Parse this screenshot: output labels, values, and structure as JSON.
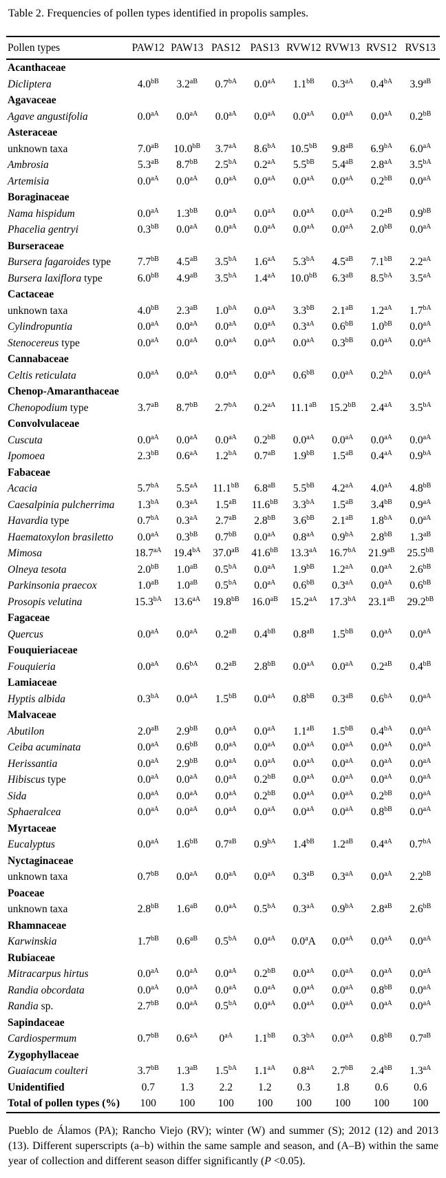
{
  "title": "Table 2. Frequencies of pollen types identified in propolis samples.",
  "table": {
    "columns": [
      "Pollen types",
      "PAW12",
      "PAW13",
      "PAS12",
      "PAS13",
      "RVW12",
      "RVW13",
      "RVS12",
      "RVS13"
    ],
    "rows": [
      {
        "type": "family",
        "label": "Acanthaceae"
      },
      {
        "type": "taxon",
        "label": "*Dicliptera*",
        "values": [
          "4.0^bB",
          "3.2^aB",
          "0.7^bA",
          "0.0^aA",
          "1.1^bB",
          "0.3^aA",
          "0.4^bA",
          "3.9^aB"
        ]
      },
      {
        "type": "family",
        "label": "Agavaceae"
      },
      {
        "type": "taxon",
        "label": "*Agave angustifolia*",
        "values": [
          "0.0^aA",
          "0.0^aA",
          "0.0^aA",
          "0.0^aA",
          "0.0^aA",
          "0.0^aA",
          "0.0^aA",
          "0.2^bB"
        ]
      },
      {
        "type": "family",
        "label": "Asteraceae"
      },
      {
        "type": "taxon",
        "label": "unknown taxa",
        "values": [
          "7.0^aB",
          "10.0^bB",
          "3.7^aA",
          "8.6^bA",
          "10.5^bB",
          "9.8^aB",
          "6.9^bA",
          "6.0^aA"
        ]
      },
      {
        "type": "taxon",
        "label": "*Ambrosia*",
        "values": [
          "5.3^aB",
          "8.7^bB",
          "2.5^bA",
          "0.2^aA",
          "5.5^bB",
          "5.4^aB",
          "2.8^aA",
          "3.5^bA"
        ]
      },
      {
        "type": "taxon",
        "label": "*Artemisia*",
        "values": [
          "0.0^aA",
          "0.0^aA",
          "0.0^aA",
          "0.0^aA",
          "0.0^aA",
          "0.0^aA",
          "0.2^bB",
          "0.0^aA"
        ]
      },
      {
        "type": "family",
        "label": "Boraginaceae"
      },
      {
        "type": "taxon",
        "label": "*Nama hispidum*",
        "values": [
          "0.0^aA",
          "1.3^bB",
          "0.0^aA",
          "0.0^aA",
          "0.0^aA",
          "0.0^aA",
          "0.2^aB",
          "0.9^bB"
        ]
      },
      {
        "type": "taxon",
        "label": "*Phacelia gentryi*",
        "values": [
          "0.3^bB",
          "0.0^aA",
          "0.0^aA",
          "0.0^aA",
          "0.0^aA",
          "0.0^aA",
          "2.0^bB",
          "0.0^aA"
        ]
      },
      {
        "type": "family",
        "label": "Burseraceae"
      },
      {
        "type": "taxon",
        "label": "*Bursera fagaroides* type",
        "values": [
          "7.7^bB",
          "4.5^aB",
          "3.5^bA",
          "1.6^aA",
          "5.3^bA",
          "4.5^aB",
          "7.1^bB",
          "2.2^aA"
        ]
      },
      {
        "type": "taxon",
        "label": "*Bursera laxiflora* type",
        "values": [
          "6.0^bB",
          "4.9^aB",
          "3.5^bA",
          "1.4^aA",
          "10.0^bB",
          "6.3^aB",
          "8.5^bA",
          "3.5^aA"
        ]
      },
      {
        "type": "family",
        "label": "Cactaceae"
      },
      {
        "type": "taxon",
        "label": "unknown taxa",
        "values": [
          "4.0^bB",
          "2.3^aB",
          "1.0^bA",
          "0.0^aA",
          "3.3^bB",
          "2.1^aB",
          "1.2^aA",
          "1.7^bA"
        ]
      },
      {
        "type": "taxon",
        "label": "*Cylindropuntia*",
        "values": [
          "0.0^aA",
          "0.0^aA",
          "0.0^aA",
          "0.0^aA",
          "0.3^aA",
          "0.6^bB",
          "1.0^bB",
          "0.0^aA"
        ]
      },
      {
        "type": "taxon",
        "label": "*Stenocereus* type",
        "values": [
          "0.0^aA",
          "0.0^aA",
          "0.0^aA",
          "0.0^aA",
          "0.0^aA",
          "0.3^bB",
          "0.0^aA",
          "0.0^aA"
        ]
      },
      {
        "type": "family",
        "label": "Cannabaceae"
      },
      {
        "type": "taxon",
        "label": "*Celtis reticulata*",
        "values": [
          "0.0^aA",
          "0.0^aA",
          "0.0^aA",
          "0.0^aA",
          "0.6^bB",
          "0.0^aA",
          "0.2^bA",
          "0.0^aA"
        ]
      },
      {
        "type": "family",
        "label": "Chenop-Amaranthaceae"
      },
      {
        "type": "taxon",
        "label": "*Chenopodium* type",
        "values": [
          "3.7^aB",
          "8.7^bB",
          "2.7^bA",
          "0.2^aA",
          "11.1^aB",
          "15.2^bB",
          "2.4^aA",
          "3.5^bA"
        ]
      },
      {
        "type": "family",
        "label": "Convolvulaceae"
      },
      {
        "type": "taxon",
        "label": "*Cuscuta*",
        "values": [
          "0.0^aA",
          "0.0^aA",
          "0.0^aA",
          "0.2^bB",
          "0.0^aA",
          "0.0^aA",
          "0.0^aA",
          "0.0^aA"
        ]
      },
      {
        "type": "taxon",
        "label": "*Ipomoea*",
        "values": [
          "2.3^bB",
          "0.6^aA",
          "1.2^bA",
          "0.7^aB",
          "1.9^bB",
          "1.5^aB",
          "0.4^aA",
          "0.9^bA"
        ]
      },
      {
        "type": "family",
        "label": "Fabaceae"
      },
      {
        "type": "taxon",
        "label": "*Acacia*",
        "values": [
          "5.7^bA",
          "5.5^aA",
          "11.1^bB",
          "6.8^aB",
          "5.5^bB",
          "4.2^aA",
          "4.0^aA",
          "4.8^bB"
        ]
      },
      {
        "type": "taxon",
        "label": "*Caesalpinia pulcherrima*",
        "values": [
          "1.3^bA",
          "0.3^aA",
          "1.5^aB",
          "11.6^bB",
          "3.3^bA",
          "1.5^aB",
          "3.4^bB",
          "0.9^aA"
        ]
      },
      {
        "type": "taxon",
        "label": "*Havardia* type",
        "values": [
          "0.7^bA",
          "0.3^aA",
          "2.7^aB",
          "2.8^bB",
          "3.6^bB",
          "2.1^aB",
          "1.8^bA",
          "0.0^aA"
        ]
      },
      {
        "type": "taxon",
        "label": "*Haematoxylon brasiletto*",
        "values": [
          "0.0^aA",
          "0.3^bB",
          "0.7^bB",
          "0.0^aA",
          "0.8^aA",
          "0.9^bA",
          "2.8^bB",
          "1.3^aB"
        ]
      },
      {
        "type": "taxon",
        "label": "*Mimosa*",
        "values": [
          "18.7^aA",
          "19.4^bA",
          "37.0^aB",
          "41.6^bB",
          "13.3^aA",
          "16.7^bA",
          "21.9^aB",
          "25.5^bB"
        ]
      },
      {
        "type": "taxon",
        "label": "*Olneya tesota*",
        "values": [
          "2.0^bB",
          "1.0^aB",
          "0.5^bA",
          "0.0^aA",
          "1.9^bB",
          "1.2^aA",
          "0.0^aA",
          "2.6^bB"
        ]
      },
      {
        "type": "taxon",
        "label": "*Parkinsonia praecox*",
        "values": [
          "1.0^aB",
          "1.0^aB",
          "0.5^bA",
          "0.0^aA",
          "0.6^bB",
          "0.3^aA",
          "0.0^aA",
          "0.6^bB"
        ]
      },
      {
        "type": "taxon",
        "label": "*Prosopis velutina*",
        "values": [
          "15.3^bA",
          "13.6^aA",
          "19.8^bB",
          "16.0^aB",
          "15.2^aA",
          "17.3^bA",
          "23.1^aB",
          "29.2^bB"
        ]
      },
      {
        "type": "family",
        "label": "Fagaceae"
      },
      {
        "type": "taxon",
        "label": "*Quercus*",
        "values": [
          "0.0^aA",
          "0.0^aA",
          "0.2^aB",
          "0.4^bB",
          "0.8^aB",
          "1.5^bB",
          "0.0^aA",
          "0.0^aA"
        ]
      },
      {
        "type": "family",
        "label": "Fouquieriaceae"
      },
      {
        "type": "taxon",
        "label": "*Fouquieria*",
        "values": [
          "0.0^aA",
          "0.6^bA",
          "0.2^aB",
          "2.8^bB",
          "0.0^aA",
          "0.0^aA",
          "0.2^aB",
          "0.4^bB"
        ]
      },
      {
        "type": "family",
        "label": "Lamiaceae"
      },
      {
        "type": "taxon",
        "label": "*Hyptis albida*",
        "values": [
          "0.3^bA",
          "0.0^aA",
          "1.5^bB",
          "0.0^aA",
          "0.8^bB",
          "0.3^aB",
          "0.6^bA",
          "0.0^aA"
        ]
      },
      {
        "type": "family",
        "label": "Malvaceae"
      },
      {
        "type": "taxon",
        "label": "*Abutilon*",
        "values": [
          "2.0^aB",
          "2.9^bB",
          "0.0^aA",
          "0.0^aA",
          "1.1^aB",
          "1.5^bB",
          "0.4^bA",
          "0.0^aA"
        ]
      },
      {
        "type": "taxon",
        "label": "*Ceiba acuminata*",
        "values": [
          "0.0^aA",
          "0.6^bB",
          "0.0^aA",
          "0.0^aA",
          "0.0^aA",
          "0.0^aA",
          "0.0^aA",
          "0.0^aA"
        ]
      },
      {
        "type": "taxon",
        "label": "*Herissantia*",
        "values": [
          "0.0^aA",
          "2.9^bB",
          "0.0^aA",
          "0.0^aA",
          "0.0^aA",
          "0.0^aA",
          "0.0^aA",
          "0.0^aA"
        ]
      },
      {
        "type": "taxon",
        "label": "*Hibiscus* type",
        "values": [
          "0.0^aA",
          "0.0^aA",
          "0.0^aA",
          "0.2^bB",
          "0.0^aA",
          "0.0^aA",
          "0.0^aA",
          "0.0^aA"
        ]
      },
      {
        "type": "taxon",
        "label": "*Sida*",
        "values": [
          "0.0^aA",
          "0.0^aA",
          "0.0^aA",
          "0.2^bB",
          "0.0^aA",
          "0.0^aA",
          "0.2^bB",
          "0.0^aA"
        ]
      },
      {
        "type": "taxon",
        "label": "*Sphaeralcea*",
        "values": [
          "0.0^aA",
          "0.0^aA",
          "0.0^aA",
          "0.0^aA",
          "0.0^aA",
          "0.0^aA",
          "0.8^bB",
          "0.0^aA"
        ]
      },
      {
        "type": "family",
        "label": "Myrtaceae"
      },
      {
        "type": "taxon",
        "label": "*Eucalyptus*",
        "values": [
          "0.0^aA",
          "1.6^bB",
          "0.7^aB",
          "0.9^bA",
          "1.4^bB",
          "1.2^aB",
          "0.4^aA",
          "0.7^bA"
        ]
      },
      {
        "type": "family",
        "label": "Nyctaginaceae"
      },
      {
        "type": "taxon",
        "label": "unknown taxa",
        "values": [
          "0.7^bB",
          "0.0^aA",
          "0.0^aA",
          "0.0^aA",
          "0.3^aB",
          "0.3^aA",
          "0.0^aA",
          "2.2^bB"
        ]
      },
      {
        "type": "family",
        "label": "Poaceae"
      },
      {
        "type": "taxon",
        "label": "unknown taxa",
        "values": [
          "2.8^bB",
          "1.6^aB",
          "0.0^aA",
          "0.5^bA",
          "0.3^aA",
          "0.9^bA",
          "2.8^aB",
          "2.6^bB"
        ]
      },
      {
        "type": "family",
        "label": "Rhamnaceae"
      },
      {
        "type": "taxon",
        "label": "*Karwinskia*",
        "values": [
          "1.7^bB",
          "0.6^aB",
          "0.5^bA",
          "0.0^aA",
          "0.0^a~A",
          "0.0^aA",
          "0.0^aA",
          "0.0^aA"
        ]
      },
      {
        "type": "family",
        "label": "Rubiaceae"
      },
      {
        "type": "taxon",
        "label": "*Mitracarpus hirtus*",
        "values": [
          "0.0^aA",
          "0.0^aA",
          "0.0^aA",
          "0.2^bB",
          "0.0^aA",
          "0.0^aA",
          "0.0^aA",
          "0.0^aA"
        ]
      },
      {
        "type": "taxon",
        "label": "*Randia obcordata*",
        "values": [
          "0.0^aA",
          "0.0^aA",
          "0.0^aA",
          "0.0^aA",
          "0.0^aA",
          "0.0^aA",
          "0.8^bB",
          "0.0^aA"
        ]
      },
      {
        "type": "taxon",
        "label": "*Randia* sp.",
        "values": [
          "2.7^bB",
          "0.0^aA",
          "0.5^bA",
          "0.0^aA",
          "0.0^aA",
          "0.0^aA",
          "0.0^aA",
          "0.0^aA"
        ]
      },
      {
        "type": "family",
        "label": "Sapindaceae"
      },
      {
        "type": "taxon",
        "label": "*Cardiospermum*",
        "values": [
          "0.7^bB",
          "0.6^aA",
          "0^aA",
          "1.1^bB",
          "0.3^bA",
          "0.0^aA",
          "0.8^bB",
          "0.7^aB"
        ]
      },
      {
        "type": "family",
        "label": "Zygophyllaceae"
      },
      {
        "type": "taxon",
        "label": "*Guaiacum coulteri*",
        "values": [
          "3.7^bB",
          "1.3^aB",
          "1.5^bA",
          "1.1^aA",
          "0.8^aA",
          "2.7^bB",
          "2.4^bB",
          "1.3^aA"
        ]
      },
      {
        "type": "summary",
        "label": "Unidentified",
        "values": [
          "0.7",
          "1.3",
          "2.2",
          "1.2",
          "0.3",
          "1.8",
          "0.6",
          "0.6"
        ]
      },
      {
        "type": "summary",
        "label": "Total of pollen types (%)",
        "values": [
          "100",
          "100",
          "100",
          "100",
          "100",
          "100",
          "100",
          "100"
        ]
      }
    ]
  },
  "footnote": {
    "text": "Pueblo de Álamos (PA); Rancho Viejo (RV); winter (W) and summer (S); 2012 (12) and 2013 (13). Different superscripts (a–b) within the same sample and season, and (A–B) within the same year of collection and different season differ significantly (*P* <0.05)."
  }
}
